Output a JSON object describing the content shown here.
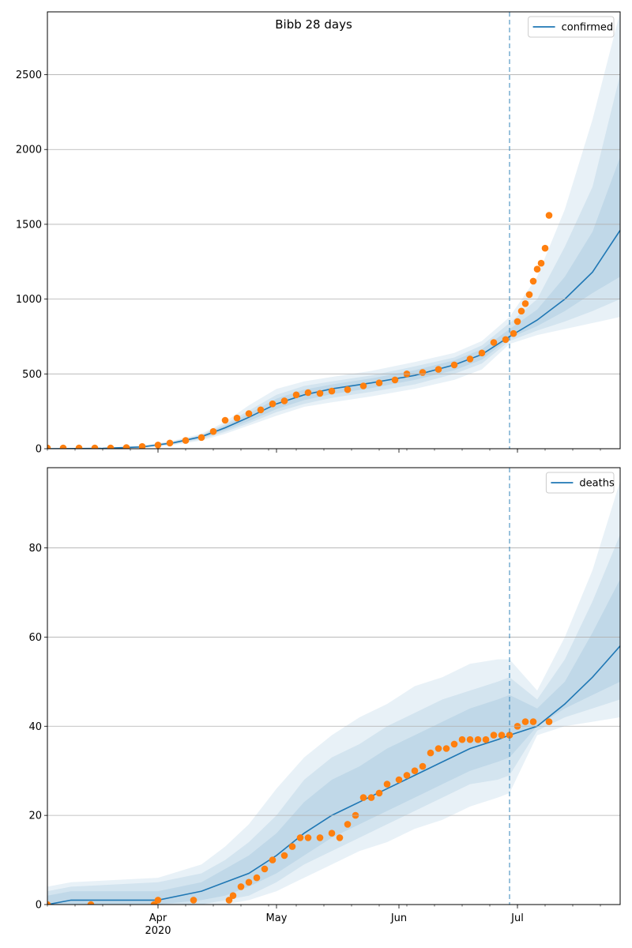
{
  "figure": {
    "title": "Bibb 28 days"
  },
  "colors": {
    "line": "#1f77b4",
    "band": "#1f77b4",
    "obs": "#ff7f0e",
    "grid": "#b0b0b0",
    "cutoff": "#1f77b4"
  },
  "x_axis": {
    "ticks": [
      {
        "date": "2020-04-01",
        "label": "Apr",
        "sublabel": "2020"
      },
      {
        "date": "2020-05-01",
        "label": "May",
        "sublabel": ""
      },
      {
        "date": "2020-06-01",
        "label": "Jun",
        "sublabel": ""
      },
      {
        "date": "2020-07-01",
        "label": "Jul",
        "sublabel": ""
      }
    ],
    "xlim": [
      "2020-03-04",
      "2020-07-27"
    ]
  },
  "chart_data": [
    {
      "type": "line",
      "legend_label": "confirmed",
      "legend_position": "upper right",
      "grid": "y",
      "xlim": [
        "2020-03-04",
        "2020-07-27"
      ],
      "ylim": [
        0,
        2920
      ],
      "yticks": [
        0,
        500,
        1000,
        1500,
        2000,
        2500
      ],
      "forecast_start": "2020-06-29",
      "fit": {
        "x": [
          "2020-03-04",
          "2020-03-18",
          "2020-03-28",
          "2020-04-05",
          "2020-04-12",
          "2020-04-18",
          "2020-04-24",
          "2020-05-01",
          "2020-05-08",
          "2020-05-15",
          "2020-05-25",
          "2020-06-05",
          "2020-06-15",
          "2020-06-22",
          "2020-06-29",
          "2020-07-06",
          "2020-07-13",
          "2020-07-20",
          "2020-07-27"
        ],
        "y": [
          0,
          2,
          12,
          40,
          80,
          140,
          210,
          300,
          360,
          400,
          440,
          490,
          560,
          630,
          750,
          860,
          1000,
          1180,
          1460
        ]
      },
      "bands": [
        {
          "upper": [
            4,
            6,
            20,
            55,
            100,
            180,
            290,
            400,
            450,
            480,
            520,
            580,
            640,
            720,
            880,
            1150,
            1600,
            2200,
            2920
          ],
          "lower": [
            0,
            0,
            5,
            25,
            55,
            100,
            155,
            220,
            280,
            310,
            350,
            400,
            460,
            530,
            700,
            760,
            800,
            840,
            880
          ]
        },
        {
          "upper": [
            3,
            5,
            17,
            50,
            92,
            165,
            255,
            360,
            420,
            450,
            490,
            550,
            610,
            690,
            840,
            1000,
            1350,
            1750,
            2500
          ],
          "lower": [
            0,
            0,
            7,
            30,
            63,
            113,
            170,
            245,
            300,
            340,
            380,
            430,
            500,
            570,
            720,
            790,
            850,
            920,
            1000
          ]
        },
        {
          "upper": [
            2,
            4,
            15,
            46,
            88,
            155,
            235,
            335,
            395,
            430,
            470,
            525,
            590,
            665,
            800,
            930,
            1150,
            1450,
            1950
          ],
          "lower": [
            0,
            1,
            9,
            34,
            70,
            124,
            185,
            265,
            325,
            365,
            405,
            460,
            525,
            595,
            740,
            820,
            920,
            1040,
            1150
          ]
        }
      ],
      "observed": {
        "x": [
          "2020-03-04",
          "2020-03-08",
          "2020-03-12",
          "2020-03-16",
          "2020-03-20",
          "2020-03-24",
          "2020-03-28",
          "2020-04-01",
          "2020-04-04",
          "2020-04-08",
          "2020-04-12",
          "2020-04-15",
          "2020-04-18",
          "2020-04-21",
          "2020-04-24",
          "2020-04-27",
          "2020-04-30",
          "2020-05-03",
          "2020-05-06",
          "2020-05-09",
          "2020-05-12",
          "2020-05-15",
          "2020-05-19",
          "2020-05-23",
          "2020-05-27",
          "2020-05-31",
          "2020-06-03",
          "2020-06-07",
          "2020-06-11",
          "2020-06-15",
          "2020-06-19",
          "2020-06-22",
          "2020-06-25",
          "2020-06-28",
          "2020-06-30",
          "2020-07-01",
          "2020-07-02",
          "2020-07-03",
          "2020-07-04",
          "2020-07-05",
          "2020-07-06",
          "2020-07-07",
          "2020-07-08",
          "2020-07-09"
        ],
        "y": [
          5,
          5,
          5,
          5,
          5,
          8,
          15,
          25,
          38,
          55,
          75,
          115,
          190,
          205,
          235,
          260,
          300,
          320,
          360,
          375,
          370,
          385,
          395,
          420,
          440,
          460,
          500,
          510,
          530,
          560,
          600,
          640,
          710,
          730,
          770,
          850,
          920,
          970,
          1030,
          1120,
          1200,
          1240,
          1340,
          1560
        ]
      }
    },
    {
      "type": "line",
      "legend_label": "deaths",
      "legend_position": "upper right",
      "grid": "y",
      "xlim": [
        "2020-03-04",
        "2020-07-27"
      ],
      "ylim": [
        0,
        98
      ],
      "yticks": [
        0,
        20,
        40,
        60,
        80
      ],
      "forecast_start": "2020-06-29",
      "fit": {
        "x": [
          "2020-03-04",
          "2020-03-10",
          "2020-04-01",
          "2020-04-12",
          "2020-04-18",
          "2020-04-24",
          "2020-05-01",
          "2020-05-08",
          "2020-05-15",
          "2020-05-22",
          "2020-05-29",
          "2020-06-05",
          "2020-06-12",
          "2020-06-19",
          "2020-06-26",
          "2020-06-29",
          "2020-07-06",
          "2020-07-13",
          "2020-07-20",
          "2020-07-27"
        ],
        "y": [
          0,
          1,
          1,
          3,
          5,
          7,
          11,
          16,
          20,
          23,
          26,
          29,
          32,
          35,
          37,
          38,
          40,
          45,
          51,
          58
        ]
      },
      "bands": [
        {
          "upper": [
            4,
            5,
            6,
            9,
            13,
            18,
            26,
            33,
            38,
            42,
            45,
            49,
            51,
            54,
            55,
            55,
            48,
            60,
            75,
            95
          ],
          "lower": [
            0,
            0,
            0,
            0,
            0,
            1,
            3,
            6,
            9,
            12,
            14,
            17,
            19,
            22,
            24,
            25,
            38,
            40,
            41,
            42
          ]
        },
        {
          "upper": [
            3,
            4,
            5,
            7,
            10,
            14,
            20,
            28,
            33,
            36,
            40,
            43,
            46,
            48,
            50,
            51,
            46,
            55,
            68,
            83
          ],
          "lower": [
            0,
            0,
            0,
            0,
            1,
            2,
            5,
            9,
            12,
            15,
            18,
            21,
            24,
            27,
            28,
            29,
            39,
            42,
            44,
            46
          ]
        },
        {
          "upper": [
            2,
            3,
            3,
            5,
            8,
            11,
            16,
            23,
            28,
            31,
            35,
            38,
            41,
            44,
            46,
            47,
            44,
            50,
            61,
            73
          ],
          "lower": [
            0,
            0,
            0,
            1,
            2,
            4,
            7,
            11,
            15,
            18,
            21,
            24,
            27,
            30,
            32,
            33,
            40,
            44,
            47,
            50
          ]
        }
      ],
      "observed": {
        "x": [
          "2020-03-04",
          "2020-03-15",
          "2020-03-31",
          "2020-04-01",
          "2020-04-10",
          "2020-04-19",
          "2020-04-20",
          "2020-04-22",
          "2020-04-24",
          "2020-04-26",
          "2020-04-28",
          "2020-04-30",
          "2020-05-03",
          "2020-05-05",
          "2020-05-07",
          "2020-05-09",
          "2020-05-12",
          "2020-05-15",
          "2020-05-17",
          "2020-05-19",
          "2020-05-21",
          "2020-05-23",
          "2020-05-25",
          "2020-05-27",
          "2020-05-29",
          "2020-06-01",
          "2020-06-03",
          "2020-06-05",
          "2020-06-07",
          "2020-06-09",
          "2020-06-11",
          "2020-06-13",
          "2020-06-15",
          "2020-06-17",
          "2020-06-19",
          "2020-06-21",
          "2020-06-23",
          "2020-06-25",
          "2020-06-27",
          "2020-06-29",
          "2020-07-01",
          "2020-07-03",
          "2020-07-05",
          "2020-07-09"
        ],
        "y": [
          0,
          0,
          0,
          1,
          1,
          1,
          2,
          4,
          5,
          6,
          8,
          10,
          11,
          13,
          15,
          15,
          15,
          16,
          15,
          18,
          20,
          24,
          24,
          25,
          27,
          28,
          29,
          30,
          31,
          34,
          35,
          35,
          36,
          37,
          37,
          37,
          37,
          38,
          38,
          38,
          40,
          41,
          41,
          41
        ]
      }
    }
  ]
}
